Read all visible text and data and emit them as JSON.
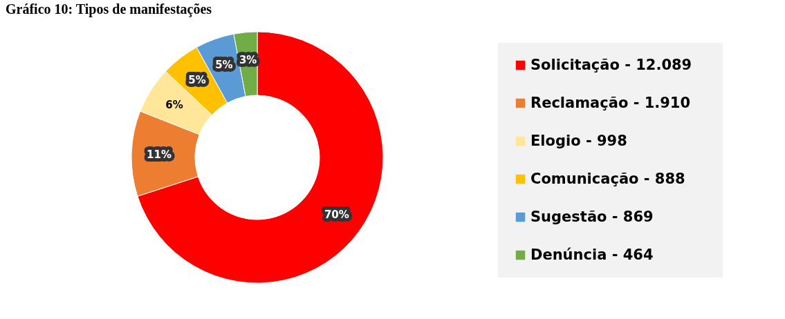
{
  "chart_data": {
    "type": "donut",
    "title": "Gráfico 10: Tipos de manifestações",
    "categories": [
      "Solicitação   -  12.089",
      "Reclamação  - 1.910",
      "Elogio - 998",
      "Comunicação - 888",
      "Sugestão - 869",
      "Denúncia - 464"
    ],
    "values": [
      70,
      11,
      6,
      5,
      5,
      3
    ],
    "colors": [
      "#ff0000",
      "#ed7d31",
      "#ffe699",
      "#ffc000",
      "#5b9bd5",
      "#70ad47"
    ],
    "value_labels": [
      "70%",
      "11%",
      "6%",
      "5%",
      "5%",
      "3%"
    ],
    "legend": "right"
  }
}
